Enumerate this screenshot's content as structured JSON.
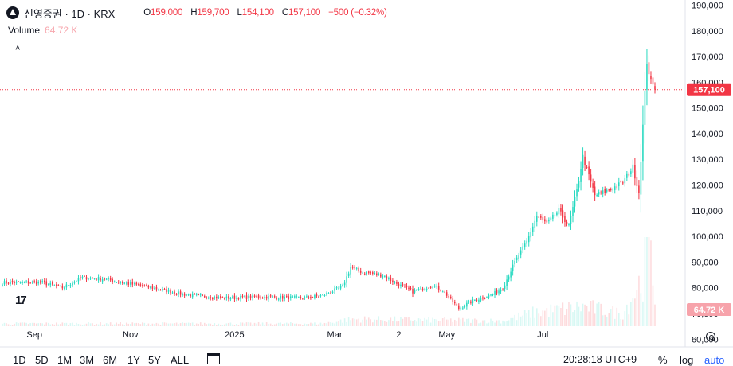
{
  "header": {
    "symbol_text": "신영증권 · 1D · KRX",
    "o_label": "O",
    "o_value": "159,000",
    "h_label": "H",
    "h_value": "159,700",
    "l_label": "L",
    "l_value": "154,100",
    "c_label": "C",
    "c_value": "157,100",
    "change": "−500 (−0.32%)"
  },
  "volume": {
    "label": "Volume",
    "value": "64.72 K"
  },
  "collapse_glyph": "˄",
  "tv_logo_text": "17",
  "time_ranges": [
    "1D",
    "5D",
    "1M",
    "3M",
    "6M",
    "1Y",
    "5Y",
    "ALL"
  ],
  "clock": "20:28:18 UTC+9",
  "scale_buttons": {
    "percent": "%",
    "log": "log",
    "auto": "auto"
  },
  "colors": {
    "up": "#26d9c0",
    "down": "#f23645",
    "price_label_bg": "#f23645",
    "volume_label_bg": "#f7a3ab",
    "text": "#131722",
    "auto": "#2962ff"
  },
  "chart_data": {
    "type": "candlestick",
    "price_axis": {
      "min": 57000,
      "max": 192000,
      "ticks": [
        60000,
        70000,
        80000,
        90000,
        100000,
        110000,
        120000,
        130000,
        140000,
        150000,
        160000,
        170000,
        180000,
        190000
      ],
      "tick_labels": [
        "60,000",
        "70,000",
        "80,000",
        "90,000",
        "100,000",
        "110,000",
        "120,000",
        "130,000",
        "140,000",
        "150,000",
        "160,000",
        "170,000",
        "180,000",
        "190,000"
      ]
    },
    "time_axis": [
      "Sep",
      "Nov",
      "2025",
      "Mar",
      "2",
      "May",
      "Jul"
    ],
    "last_price": 157100,
    "last_price_label": "157,100",
    "volume_label": "64.72 K",
    "close_anchors": [
      {
        "i": 0,
        "c": 82000
      },
      {
        "i": 20,
        "c": 82000
      },
      {
        "i": 30,
        "c": 80000
      },
      {
        "i": 40,
        "c": 84000
      },
      {
        "i": 50,
        "c": 83500
      },
      {
        "i": 60,
        "c": 82000
      },
      {
        "i": 75,
        "c": 80000
      },
      {
        "i": 90,
        "c": 77500
      },
      {
        "i": 110,
        "c": 76000
      },
      {
        "i": 130,
        "c": 76500
      },
      {
        "i": 150,
        "c": 76000
      },
      {
        "i": 160,
        "c": 77000
      },
      {
        "i": 170,
        "c": 80500
      },
      {
        "i": 174,
        "c": 88000
      },
      {
        "i": 180,
        "c": 86000
      },
      {
        "i": 190,
        "c": 85000
      },
      {
        "i": 196,
        "c": 82000
      },
      {
        "i": 205,
        "c": 78500
      },
      {
        "i": 215,
        "c": 81000
      },
      {
        "i": 220,
        "c": 79000
      },
      {
        "i": 228,
        "c": 72000
      },
      {
        "i": 235,
        "c": 75000
      },
      {
        "i": 245,
        "c": 77500
      },
      {
        "i": 250,
        "c": 80000
      },
      {
        "i": 256,
        "c": 90000
      },
      {
        "i": 262,
        "c": 98000
      },
      {
        "i": 267,
        "c": 108000
      },
      {
        "i": 272,
        "c": 105000
      },
      {
        "i": 278,
        "c": 110000
      },
      {
        "i": 283,
        "c": 104000
      },
      {
        "i": 287,
        "c": 118000
      },
      {
        "i": 290,
        "c": 131000
      },
      {
        "i": 296,
        "c": 116000
      },
      {
        "i": 303,
        "c": 118000
      },
      {
        "i": 310,
        "c": 121000
      },
      {
        "i": 315,
        "c": 127000
      },
      {
        "i": 318,
        "c": 117000
      },
      {
        "i": 320,
        "c": 143000
      },
      {
        "i": 322,
        "c": 168000
      },
      {
        "i": 324,
        "c": 160000
      },
      {
        "i": 326,
        "c": 157100
      }
    ],
    "volume_anchors": [
      {
        "i": 0,
        "v": 3
      },
      {
        "i": 160,
        "v": 3
      },
      {
        "i": 175,
        "v": 8
      },
      {
        "i": 250,
        "v": 6
      },
      {
        "i": 265,
        "v": 15
      },
      {
        "i": 290,
        "v": 22
      },
      {
        "i": 310,
        "v": 14
      },
      {
        "i": 320,
        "v": 55
      },
      {
        "i": 322,
        "v": 100
      },
      {
        "i": 326,
        "v": 35
      }
    ]
  }
}
